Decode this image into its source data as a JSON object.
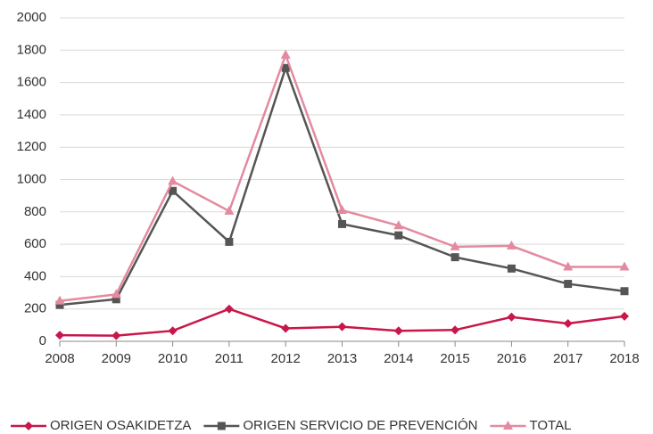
{
  "chart_data": {
    "type": "line",
    "x": [
      2008,
      2009,
      2010,
      2011,
      2012,
      2013,
      2014,
      2015,
      2016,
      2017,
      2018
    ],
    "series": [
      {
        "name": "ORIGEN OSAKIDETZA",
        "color": "#c8174a",
        "marker": "diamond",
        "values": [
          38,
          35,
          65,
          200,
          80,
          90,
          65,
          70,
          150,
          110,
          155
        ]
      },
      {
        "name": "ORIGEN SERVICIO DE PREVENCIÓN",
        "color": "#555555",
        "marker": "square",
        "values": [
          225,
          260,
          930,
          615,
          1690,
          725,
          655,
          520,
          450,
          355,
          310
        ]
      },
      {
        "name": "TOTAL",
        "color": "#e38aa0",
        "marker": "triangle",
        "values": [
          250,
          290,
          990,
          805,
          1770,
          810,
          715,
          585,
          590,
          460,
          460
        ]
      }
    ],
    "xlim": [
      2008,
      2018
    ],
    "xticks": [
      2008,
      2009,
      2010,
      2011,
      2012,
      2013,
      2014,
      2015,
      2016,
      2017,
      2018
    ],
    "ylim": [
      0,
      2000
    ],
    "yticks": [
      0,
      200,
      400,
      600,
      800,
      1000,
      1200,
      1400,
      1600,
      1800,
      2000
    ],
    "grid": true,
    "legend": "bottom"
  }
}
